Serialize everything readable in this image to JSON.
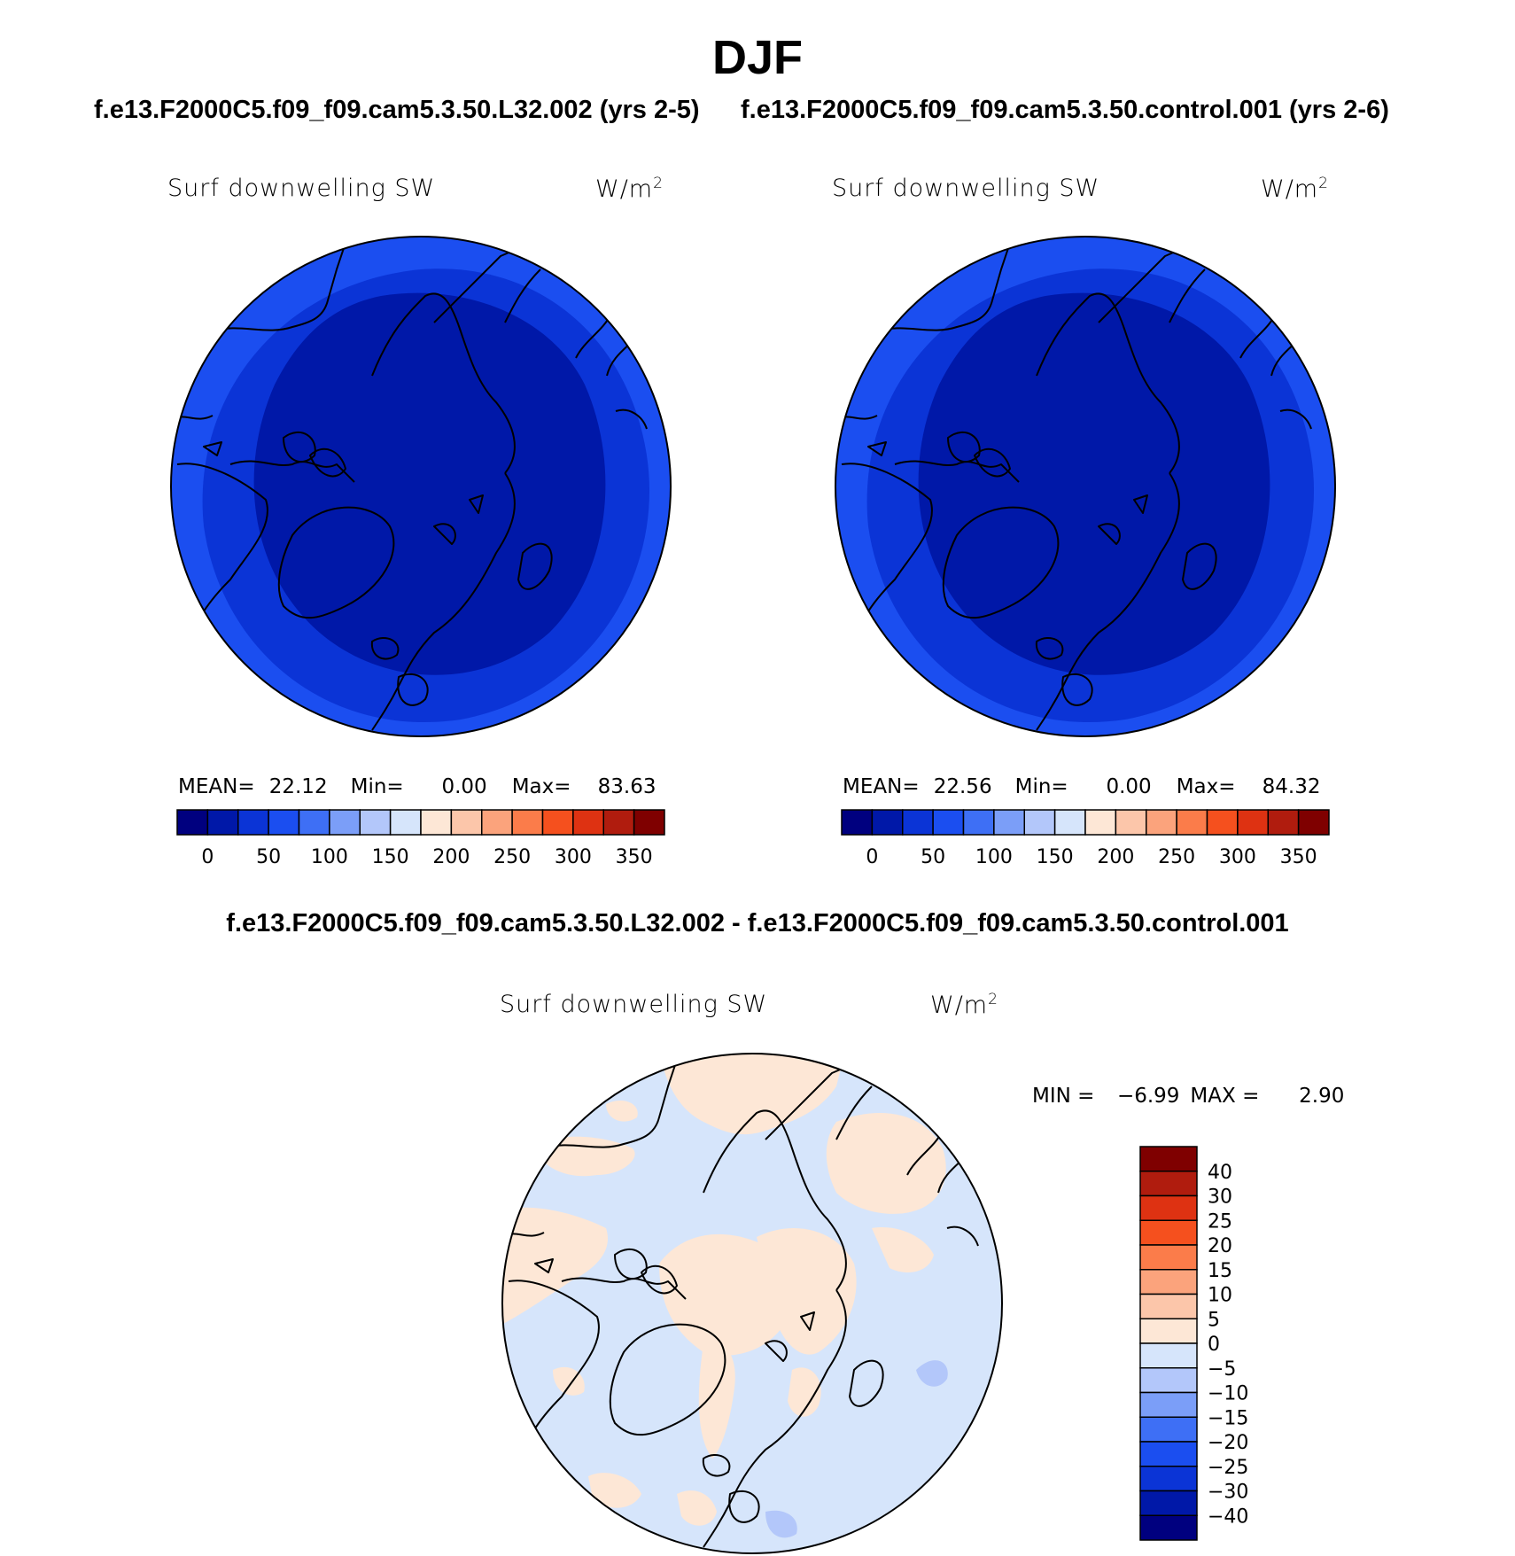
{
  "title": "DJF",
  "panels": [
    {
      "case_title": "f.e13.F2000C5.f09_f09.cam5.3.50.L32.002 (yrs 2-5)",
      "variable": "Surf downwelling SW",
      "units_base": "W/m",
      "units_exp": "2",
      "stats": {
        "mean_label": "MEAN=",
        "mean": "22.12",
        "min_label": "Min=",
        "min": "0.00",
        "max_label": "Max=",
        "max": "83.63"
      }
    },
    {
      "case_title": "f.e13.F2000C5.f09_f09.cam5.3.50.control.001 (yrs 2-6)",
      "variable": "Surf downwelling SW",
      "units_base": "W/m",
      "units_exp": "2",
      "stats": {
        "mean_label": "MEAN=",
        "mean": "22.56",
        "min_label": "Min=",
        "min": "0.00",
        "max_label": "Max=",
        "max": "84.32"
      }
    }
  ],
  "abs_colorbar": {
    "colors": [
      "#00007f",
      "#0018a8",
      "#0b34d6",
      "#1b4ef0",
      "#3e6ff5",
      "#7b9ef8",
      "#b3c7fa",
      "#d6e5fb",
      "#fde7d6",
      "#fcc6aa",
      "#fba37c",
      "#fb7c4a",
      "#f5501e",
      "#de3212",
      "#b01c0e",
      "#7f0000"
    ],
    "tick_labels": [
      "0",
      "50",
      "100",
      "150",
      "200",
      "250",
      "300",
      "350"
    ]
  },
  "diff": {
    "title": "f.e13.F2000C5.f09_f09.cam5.3.50.L32.002 - f.e13.F2000C5.f09_f09.cam5.3.50.control.001",
    "variable": "Surf downwelling SW",
    "units_base": "W/m",
    "units_exp": "2",
    "stats": {
      "min_label": "MIN =",
      "min": "−6.99",
      "max_label": "MAX =",
      "max": "2.90"
    }
  },
  "diff_colorbar": {
    "colors_top_to_bottom": [
      "#7f0000",
      "#b01c0e",
      "#de3212",
      "#f5501e",
      "#fb7c4a",
      "#fba37c",
      "#fcc6aa",
      "#fde7d6",
      "#d6e5fb",
      "#b3c7fa",
      "#7b9ef8",
      "#3e6ff5",
      "#1b4ef0",
      "#0b34d6",
      "#0018a8",
      "#00007f"
    ],
    "tick_labels": [
      "40",
      "30",
      "25",
      "20",
      "15",
      "10",
      "5",
      "0",
      "−5",
      "−10",
      "−15",
      "−20",
      "−25",
      "−30",
      "−40"
    ]
  },
  "field_colors": {
    "abs_outer": "#1b4ef0",
    "abs_mid": "#0b34d6",
    "abs_inner": "#0018a8",
    "diff_neg": "#d6e5fb",
    "diff_pos": "#fde7d6",
    "diff_neg2": "#b3c7fa"
  }
}
